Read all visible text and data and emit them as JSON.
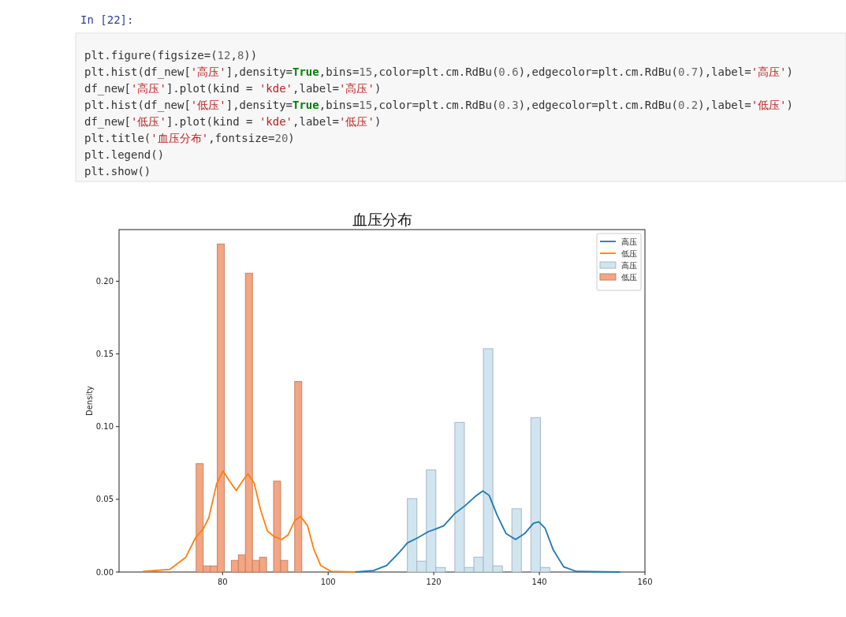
{
  "chart_data": {
    "type": "histogram",
    "title": "血压分布",
    "ylabel": "Density",
    "annotations": [
      "In [22]:",
      "plt.figure(figsize=(12,8))",
      "plt.hist(df_new['高压'],density=True,bins=15,color=plt.cm.RdBu(0.6),edgecolor=plt.cm.RdBu(0.7),label='高压')",
      "df_new['高压'].plot(kind = 'kde',label='高压')",
      "plt.hist(df_new['低压'],density=True,bins=15,color=plt.cm.RdBu(0.3),edgecolor=plt.cm.RdBu(0.2),label='低压')",
      "df_new['低压'].plot(kind = 'kde',label='低压')",
      "plt.title('血压分布',fontsize=20)",
      "plt.legend()",
      "plt.show()"
    ],
    "xlim": [
      60.4,
      160
    ],
    "ylim": [
      0,
      0.2355
    ],
    "xticks": [
      80,
      100,
      120,
      140,
      160
    ],
    "yticks": [
      {
        "value": 0,
        "label": "0.00"
      },
      {
        "value": 0.05,
        "label": "0.05"
      },
      {
        "value": 0.1,
        "label": "0.10"
      },
      {
        "value": 0.15,
        "label": "0.15"
      },
      {
        "value": 0.2,
        "label": "0.20"
      }
    ],
    "legend": "top right",
    "grid": false,
    "series": [
      {
        "name": "高压",
        "color": "#d1e5f0",
        "bins": [
          115,
          116.8,
          118.6,
          120.4,
          122.2,
          124,
          125.8,
          127.6,
          129.4,
          131.2,
          133,
          134.8,
          136.6,
          138.4,
          140.2,
          142
        ],
        "values": [
          0.0505,
          0.0075,
          0.0702,
          0.0031,
          0,
          0.1029,
          0.0031,
          0.0102,
          0.1536,
          0.0042,
          0,
          0.0435,
          0,
          0.1062,
          0.0031
        ]
      },
      {
        "type": "line",
        "name": "高压",
        "color": "#1f77b4",
        "x": [
          105.2,
          108.6,
          111.1,
          113.5,
          115,
          117,
          119,
          120.4,
          121.9,
          123.9,
          125.9,
          127.8,
          129.3,
          130.5,
          132,
          133.7,
          135.5,
          137.2,
          138.9,
          139.9,
          141.1,
          142.6,
          144.6,
          147,
          155.2
        ],
        "values": [
          0,
          0.001,
          0.0045,
          0.0136,
          0.02,
          0.0236,
          0.0278,
          0.0296,
          0.0318,
          0.04,
          0.0455,
          0.0518,
          0.0558,
          0.0527,
          0.0391,
          0.0264,
          0.0224,
          0.0264,
          0.0336,
          0.0345,
          0.03,
          0.0155,
          0.0036,
          0.0004,
          0
        ]
      },
      {
        "name": "低压",
        "color": "#f4a582",
        "bins": [
          75,
          76.333,
          77.667,
          79,
          80.333,
          81.667,
          83,
          84.333,
          85.667,
          87,
          88.333,
          89.667,
          91,
          92.333,
          93.667,
          95
        ],
        "values": [
          0.0745,
          0.0042,
          0.0042,
          0.2256,
          0,
          0.008,
          0.0118,
          0.2055,
          0.008,
          0.0102,
          0,
          0.0625,
          0.008,
          0,
          0.131
        ]
      },
      {
        "type": "line",
        "name": "低压",
        "color": "#ff7f0e",
        "x": [
          65,
          70,
          73,
          74.9,
          76.4,
          77.4,
          78.9,
          80.1,
          81.3,
          82.6,
          83.8,
          84.8,
          86,
          87.2,
          88.5,
          89.7,
          91.2,
          92.4,
          93.7,
          94.8,
          96.1,
          97.3,
          98.6,
          100.5,
          105
        ],
        "values": [
          0.0004,
          0.0018,
          0.01,
          0.0236,
          0.03,
          0.0373,
          0.061,
          0.0695,
          0.0627,
          0.056,
          0.0627,
          0.0676,
          0.061,
          0.0427,
          0.0282,
          0.0245,
          0.0224,
          0.0255,
          0.0355,
          0.0382,
          0.0318,
          0.0155,
          0.0045,
          0.0005,
          0
        ]
      }
    ]
  }
}
